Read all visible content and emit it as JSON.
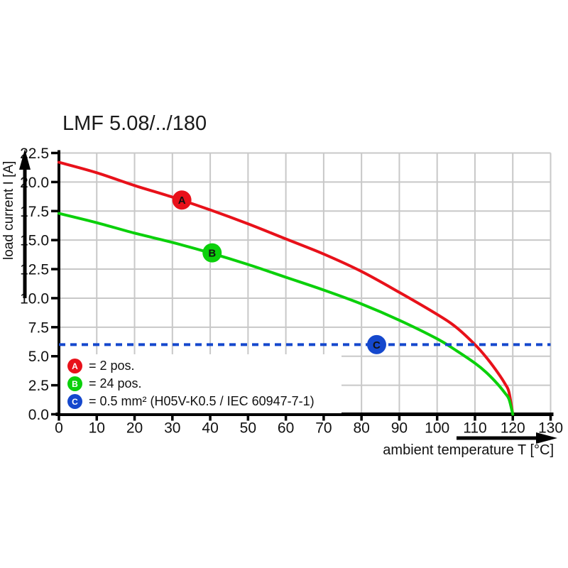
{
  "chart_data": {
    "type": "line",
    "title": "LMF 5.08/../180",
    "xlabel": "ambient temperature T [°C]",
    "ylabel": "load current I [A]",
    "xlim": [
      0,
      130
    ],
    "ylim": [
      0,
      22.5
    ],
    "grid": true,
    "x_ticks": [
      "0",
      "10",
      "20",
      "30",
      "40",
      "50",
      "60",
      "70",
      "80",
      "90",
      "100",
      "110",
      "120",
      "130"
    ],
    "y_ticks": [
      "0.0",
      "2.5",
      "5.0",
      "7.5",
      "10.0",
      "12.5",
      "15.0",
      "17.5",
      "20.0",
      "22.5"
    ],
    "series": [
      {
        "id": "A",
        "name": "2 pos.",
        "color": "#e8111a",
        "style": "solid",
        "points": [
          [
            0,
            21.7
          ],
          [
            10,
            20.8
          ],
          [
            20,
            19.7
          ],
          [
            30,
            18.7
          ],
          [
            40,
            17.6
          ],
          [
            50,
            16.4
          ],
          [
            60,
            15.1
          ],
          [
            70,
            13.8
          ],
          [
            80,
            12.3
          ],
          [
            90,
            10.5
          ],
          [
            100,
            8.6
          ],
          [
            105,
            7.5
          ],
          [
            110,
            6.0
          ],
          [
            113,
            4.9
          ],
          [
            116,
            3.6
          ],
          [
            118,
            2.6
          ],
          [
            119,
            1.9
          ],
          [
            120,
            0
          ]
        ],
        "marker": {
          "x": 32.5,
          "y": 18.45,
          "label": "A"
        }
      },
      {
        "id": "B",
        "name": "24 pos.",
        "color": "#0bd00b",
        "style": "solid",
        "points": [
          [
            0,
            17.3
          ],
          [
            10,
            16.5
          ],
          [
            20,
            15.6
          ],
          [
            30,
            14.8
          ],
          [
            40,
            13.9
          ],
          [
            50,
            12.9
          ],
          [
            60,
            11.8
          ],
          [
            70,
            10.7
          ],
          [
            80,
            9.5
          ],
          [
            90,
            8.1
          ],
          [
            100,
            6.5
          ],
          [
            105,
            5.5
          ],
          [
            110,
            4.4
          ],
          [
            113,
            3.6
          ],
          [
            116,
            2.6
          ],
          [
            118,
            1.8
          ],
          [
            119,
            1.3
          ],
          [
            120,
            0
          ]
        ],
        "marker": {
          "x": 40.5,
          "y": 13.9,
          "label": "B"
        }
      },
      {
        "id": "C",
        "name": "0.5 mm² (H05V-K0.5 / IEC 60947-7-1)",
        "color": "#1548cd",
        "style": "dashed",
        "points": [
          [
            0,
            6.0
          ],
          [
            130,
            6.0
          ]
        ],
        "marker": {
          "x": 84,
          "y": 6.0,
          "label": "C"
        }
      }
    ],
    "legend": {
      "position": "inside-bottom-left",
      "items": [
        {
          "letter": "A",
          "color": "#e8111a",
          "label": "= 2 pos."
        },
        {
          "letter": "B",
          "color": "#0bd00b",
          "label": "= 24 pos."
        },
        {
          "letter": "C",
          "color": "#1548cd",
          "label": "= 0.5 mm² (H05V-K0.5 / IEC 60947-7-1)"
        }
      ]
    },
    "colors": {
      "grid": "#c8c8c8",
      "axis": "#000000",
      "text": "#111111"
    }
  }
}
